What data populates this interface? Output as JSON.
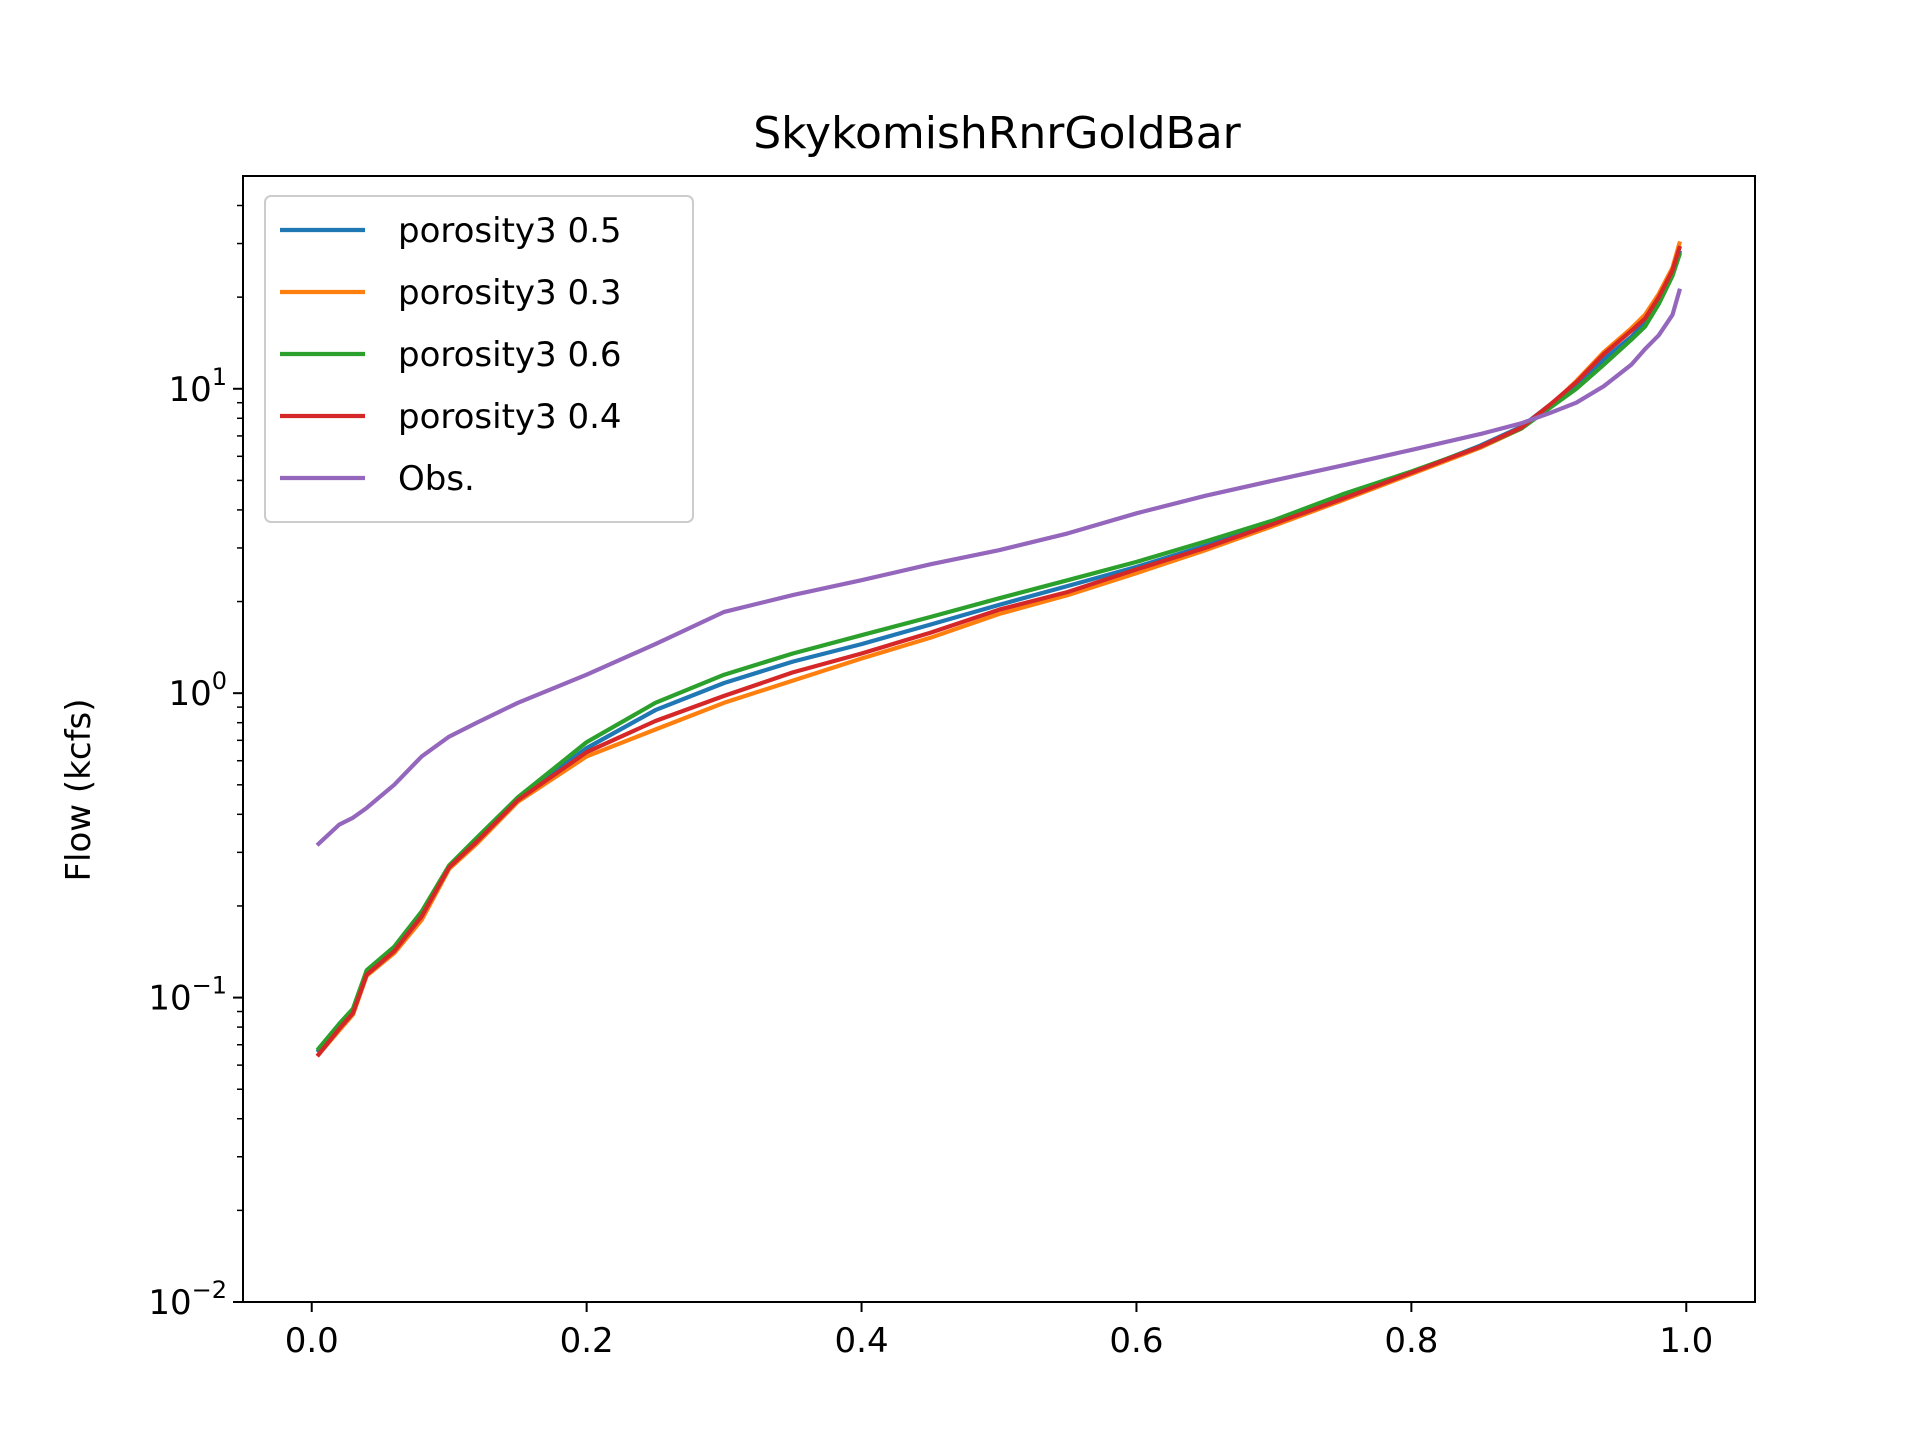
{
  "chart_data": {
    "type": "line",
    "title": "SkykomishRnrGoldBar",
    "xlabel": "",
    "ylabel": "Flow (kcfs)",
    "xlim": [
      -0.05,
      1.05
    ],
    "ylim": [
      0.01,
      50
    ],
    "yscale": "log",
    "xticks": [
      0.0,
      0.2,
      0.4,
      0.6,
      0.8,
      1.0
    ],
    "xtick_labels": [
      "0.0",
      "0.2",
      "0.4",
      "0.6",
      "0.8",
      "1.0"
    ],
    "yticks": [
      0.01,
      0.1,
      1,
      10
    ],
    "ytick_base": "10",
    "ytick_exponents": [
      "−2",
      "−1",
      "0",
      "1"
    ],
    "grid": false,
    "legend_position": "upper-left",
    "x": [
      0.005,
      0.02,
      0.03,
      0.04,
      0.06,
      0.08,
      0.1,
      0.12,
      0.15,
      0.2,
      0.25,
      0.3,
      0.35,
      0.4,
      0.45,
      0.5,
      0.55,
      0.6,
      0.65,
      0.7,
      0.75,
      0.8,
      0.85,
      0.88,
      0.9,
      0.92,
      0.94,
      0.96,
      0.97,
      0.98,
      0.99,
      0.995
    ],
    "series": [
      {
        "name": "porosity3 0.5",
        "color": "#1f77b4",
        "values": [
          0.067,
          0.08,
          0.09,
          0.12,
          0.145,
          0.19,
          0.27,
          0.33,
          0.45,
          0.66,
          0.88,
          1.08,
          1.27,
          1.45,
          1.68,
          1.95,
          2.25,
          2.6,
          3.05,
          3.6,
          4.4,
          5.3,
          6.5,
          7.5,
          8.8,
          10.3,
          12.5,
          14.8,
          16.5,
          19.5,
          24.0,
          28.0
        ]
      },
      {
        "name": "porosity3 0.3",
        "color": "#ff7f0e",
        "values": [
          0.065,
          0.078,
          0.088,
          0.118,
          0.14,
          0.18,
          0.265,
          0.32,
          0.44,
          0.62,
          0.76,
          0.93,
          1.1,
          1.3,
          1.52,
          1.82,
          2.1,
          2.48,
          2.95,
          3.55,
          4.3,
          5.25,
          6.4,
          7.4,
          8.7,
          10.6,
          13.2,
          15.8,
          17.5,
          20.5,
          25.0,
          30.0
        ]
      },
      {
        "name": "porosity3 0.6",
        "color": "#2ca02c",
        "values": [
          0.068,
          0.082,
          0.092,
          0.123,
          0.147,
          0.192,
          0.272,
          0.335,
          0.455,
          0.69,
          0.93,
          1.15,
          1.35,
          1.55,
          1.78,
          2.05,
          2.35,
          2.7,
          3.15,
          3.7,
          4.5,
          5.35,
          6.45,
          7.4,
          8.6,
          10.0,
          12.0,
          14.5,
          16.0,
          19.0,
          23.5,
          27.5
        ]
      },
      {
        "name": "porosity3 0.4",
        "color": "#d62728",
        "values": [
          0.065,
          0.079,
          0.089,
          0.119,
          0.142,
          0.185,
          0.268,
          0.325,
          0.445,
          0.64,
          0.81,
          0.98,
          1.17,
          1.35,
          1.58,
          1.88,
          2.15,
          2.55,
          3.0,
          3.6,
          4.35,
          5.3,
          6.45,
          7.45,
          8.8,
          10.5,
          13.0,
          15.5,
          17.0,
          20.0,
          24.5,
          29.0
        ]
      },
      {
        "name": "Obs.",
        "color": "#9467bd",
        "values": [
          0.32,
          0.37,
          0.39,
          0.42,
          0.5,
          0.62,
          0.72,
          0.8,
          0.93,
          1.15,
          1.45,
          1.85,
          2.1,
          2.35,
          2.65,
          2.95,
          3.35,
          3.9,
          4.45,
          5.0,
          5.6,
          6.3,
          7.1,
          7.7,
          8.3,
          9.0,
          10.2,
          12.0,
          13.5,
          15.0,
          17.5,
          21.0
        ]
      }
    ]
  }
}
